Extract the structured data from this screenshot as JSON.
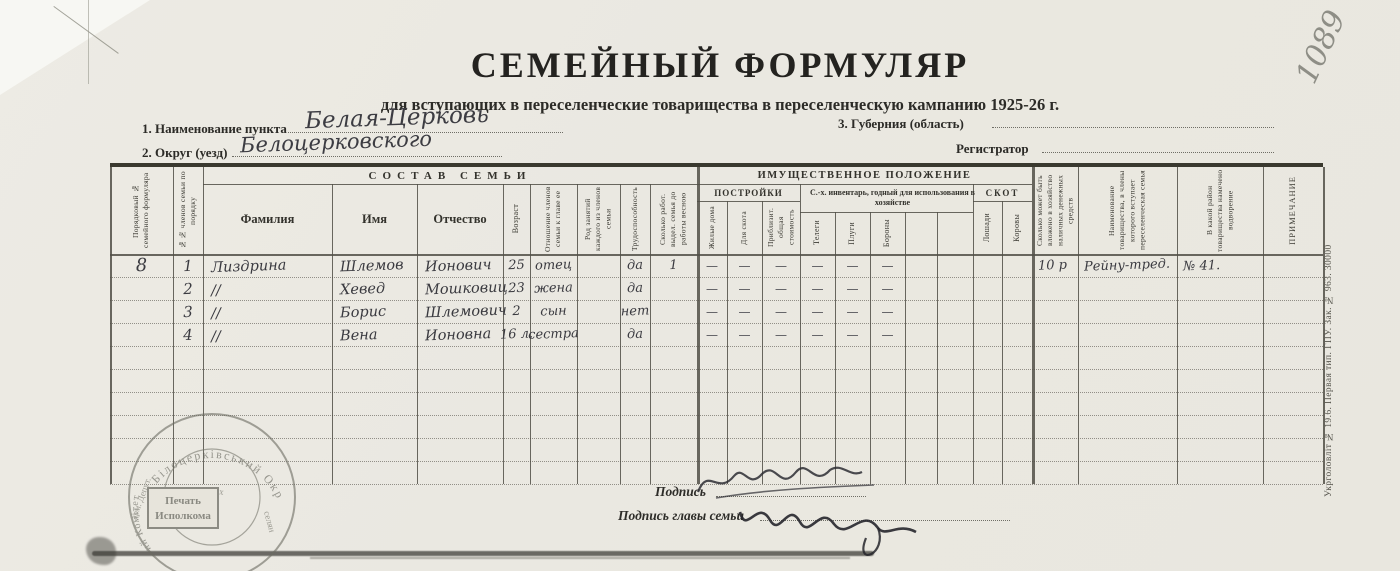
{
  "document": {
    "title": "СЕМЕЙНЫЙ ФОРМУЛЯР",
    "subtitle": "для вступающих в переселенческие товарищества в переселенческую кампанию 1925-26 г.",
    "corner_number": "1089",
    "imprint": "Укрголовлiт № 19.6.  Первая тип. ГПУ.  Зак. № 963.  30000"
  },
  "fields": {
    "point_label": "1. Наименование пункта",
    "point_value": "Белая-Церковь",
    "okrug_label": "2. Округ (уезд)",
    "okrug_value": "Белоцерковского",
    "guberniya_label": "3. Губерния (область)",
    "guberniya_value": "",
    "registrar_label": "Регистратор",
    "registrar_value": ""
  },
  "table": {
    "group_family": "СОСТАВ СЕМЬИ",
    "group_property": "ИМУЩЕСТВЕННОЕ ПОЛОЖЕНИЕ",
    "group_buildings": "ПОСТРОЙКИ",
    "group_inventory": "С.-х. инвентарь, годный для использования в хозяйстве",
    "group_livestock": "СКОТ",
    "columns": [
      "Порядковый № семейного формуляра",
      "№№ членов семьи по порядку",
      "Фамилия",
      "Имя",
      "Отчество",
      "Возраст",
      "Отношение членов семьи к главе ее",
      "Род занятий каждого из членов семьи",
      "Трудоспособность",
      "Сколько работ. выдел. семья до работы весною",
      "Жилые дома",
      "Для скота",
      "Приблизит. общая стоимость",
      "Телеги",
      "Плуги",
      "Бороны",
      "",
      "",
      "Лошади",
      "Коровы",
      "Сколько может быть вложено в хозяйство наличных денежных средств",
      "Наименование товарищества, в члены которого вступает переселенческая семья",
      "В какой район товарищества намечено водворение",
      "ПРИМЕЧАНИЕ"
    ],
    "rows": [
      [
        "8",
        "1",
        "Лиздрина",
        "Шлемов",
        "Ионович",
        "25",
        "отец",
        "",
        "да",
        "1",
        "—",
        "—",
        "—",
        "—",
        "—",
        "—",
        "",
        "",
        "",
        "",
        "10 р",
        "Рейну-тред.",
        "№ 41.",
        ""
      ],
      [
        "",
        "2",
        "//",
        "Хевед",
        "Мошковиц",
        "23",
        "жена",
        "",
        "да",
        "",
        "—",
        "—",
        "—",
        "—",
        "—",
        "—",
        "",
        "",
        "",
        "",
        "",
        "",
        "",
        ""
      ],
      [
        "",
        "3",
        "//",
        "Борис",
        "Шлемович",
        "2",
        "сын",
        "",
        "нет",
        "",
        "—",
        "—",
        "—",
        "—",
        "—",
        "—",
        "",
        "",
        "",
        "",
        "",
        "",
        "",
        ""
      ],
      [
        "",
        "4",
        "//",
        "Вена",
        "Ионовна",
        "16 л.",
        "сестра",
        "",
        "да",
        "",
        "—",
        "—",
        "—",
        "—",
        "—",
        "—",
        "",
        "",
        "",
        "",
        "",
        "",
        "",
        ""
      ]
    ]
  },
  "footer": {
    "signature_label": "Подпись",
    "head_signature_label": "Подпись главы семьи"
  },
  "stamp": {
    "ring_top": "Білоцерківський Окр",
    "ring_left": "ий Комітет",
    "ring_left_small": "арм. Депут.",
    "inner_arc": "Рад воєнних",
    "inner_right": "селян",
    "center_line1": "Печать",
    "center_line2": "Исполкома"
  }
}
